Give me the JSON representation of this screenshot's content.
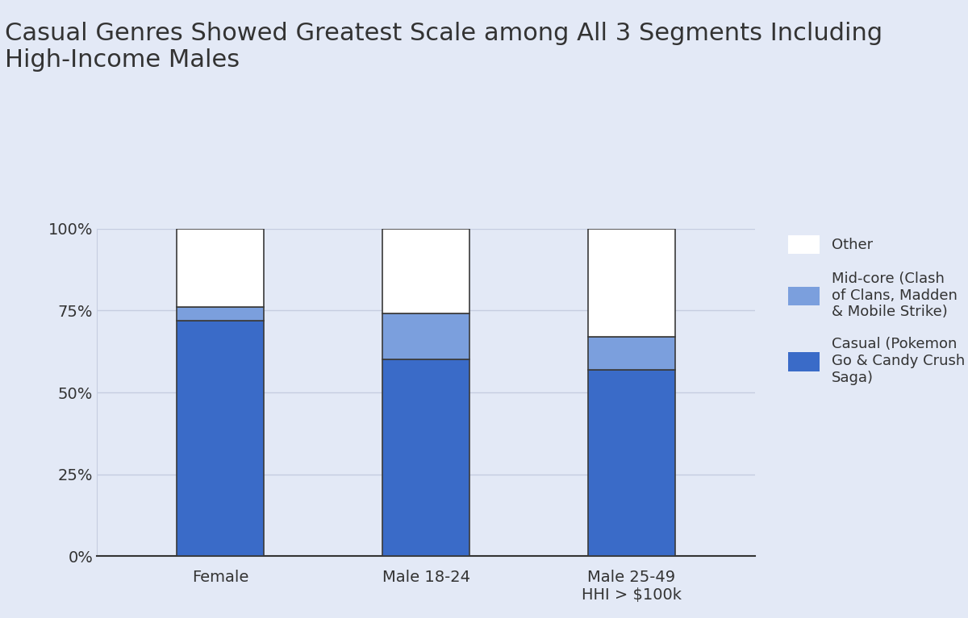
{
  "chart_data": {
    "type": "bar",
    "stacked": true,
    "title": "Casual Genres Showed Greatest Scale among All 3 Segments Including High-Income Males",
    "categories": [
      "Female",
      "Male 18-24",
      "Male 25-49\nHHI > $100k"
    ],
    "series": [
      {
        "name": "Casual (Pokemon Go & Candy Crush Saga)",
        "color": "#3a6bc8",
        "values": [
          72,
          60,
          57
        ]
      },
      {
        "name": "Mid-core (Clash of Clans, Madden & Mobile Strike)",
        "color": "#7b9fdd",
        "values": [
          4,
          14,
          10
        ]
      },
      {
        "name": "Other",
        "color": "#ffffff",
        "values": [
          24,
          26,
          33
        ]
      }
    ],
    "ylim": [
      0,
      100
    ],
    "yticks": [
      {
        "value": 0,
        "label": "0%"
      },
      {
        "value": 25,
        "label": "25%"
      },
      {
        "value": 50,
        "label": "50%"
      },
      {
        "value": 75,
        "label": "75%"
      },
      {
        "value": 100,
        "label": "100%"
      }
    ],
    "grid": true,
    "legend": "upper left"
  }
}
